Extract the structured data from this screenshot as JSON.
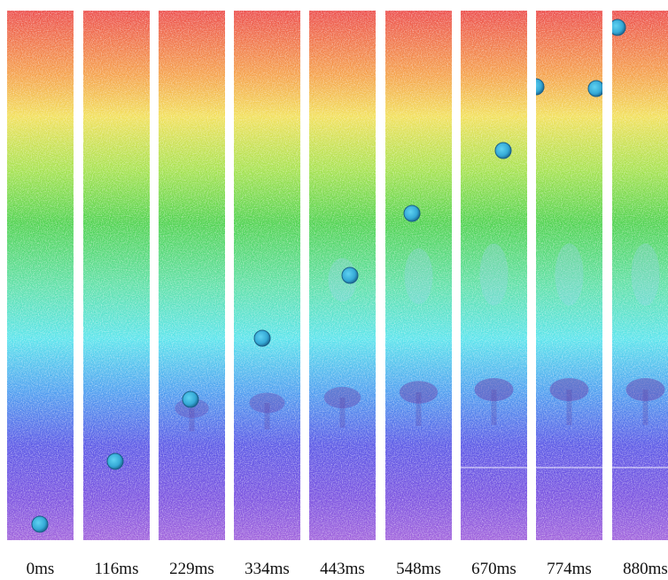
{
  "frames": [
    {
      "label": "0ms"
    },
    {
      "label": "116ms"
    },
    {
      "label": "229ms"
    },
    {
      "label": "334ms"
    },
    {
      "label": "443ms"
    },
    {
      "label": "548ms"
    },
    {
      "label": "670ms"
    },
    {
      "label": "774ms"
    },
    {
      "label": "880ms"
    }
  ]
}
